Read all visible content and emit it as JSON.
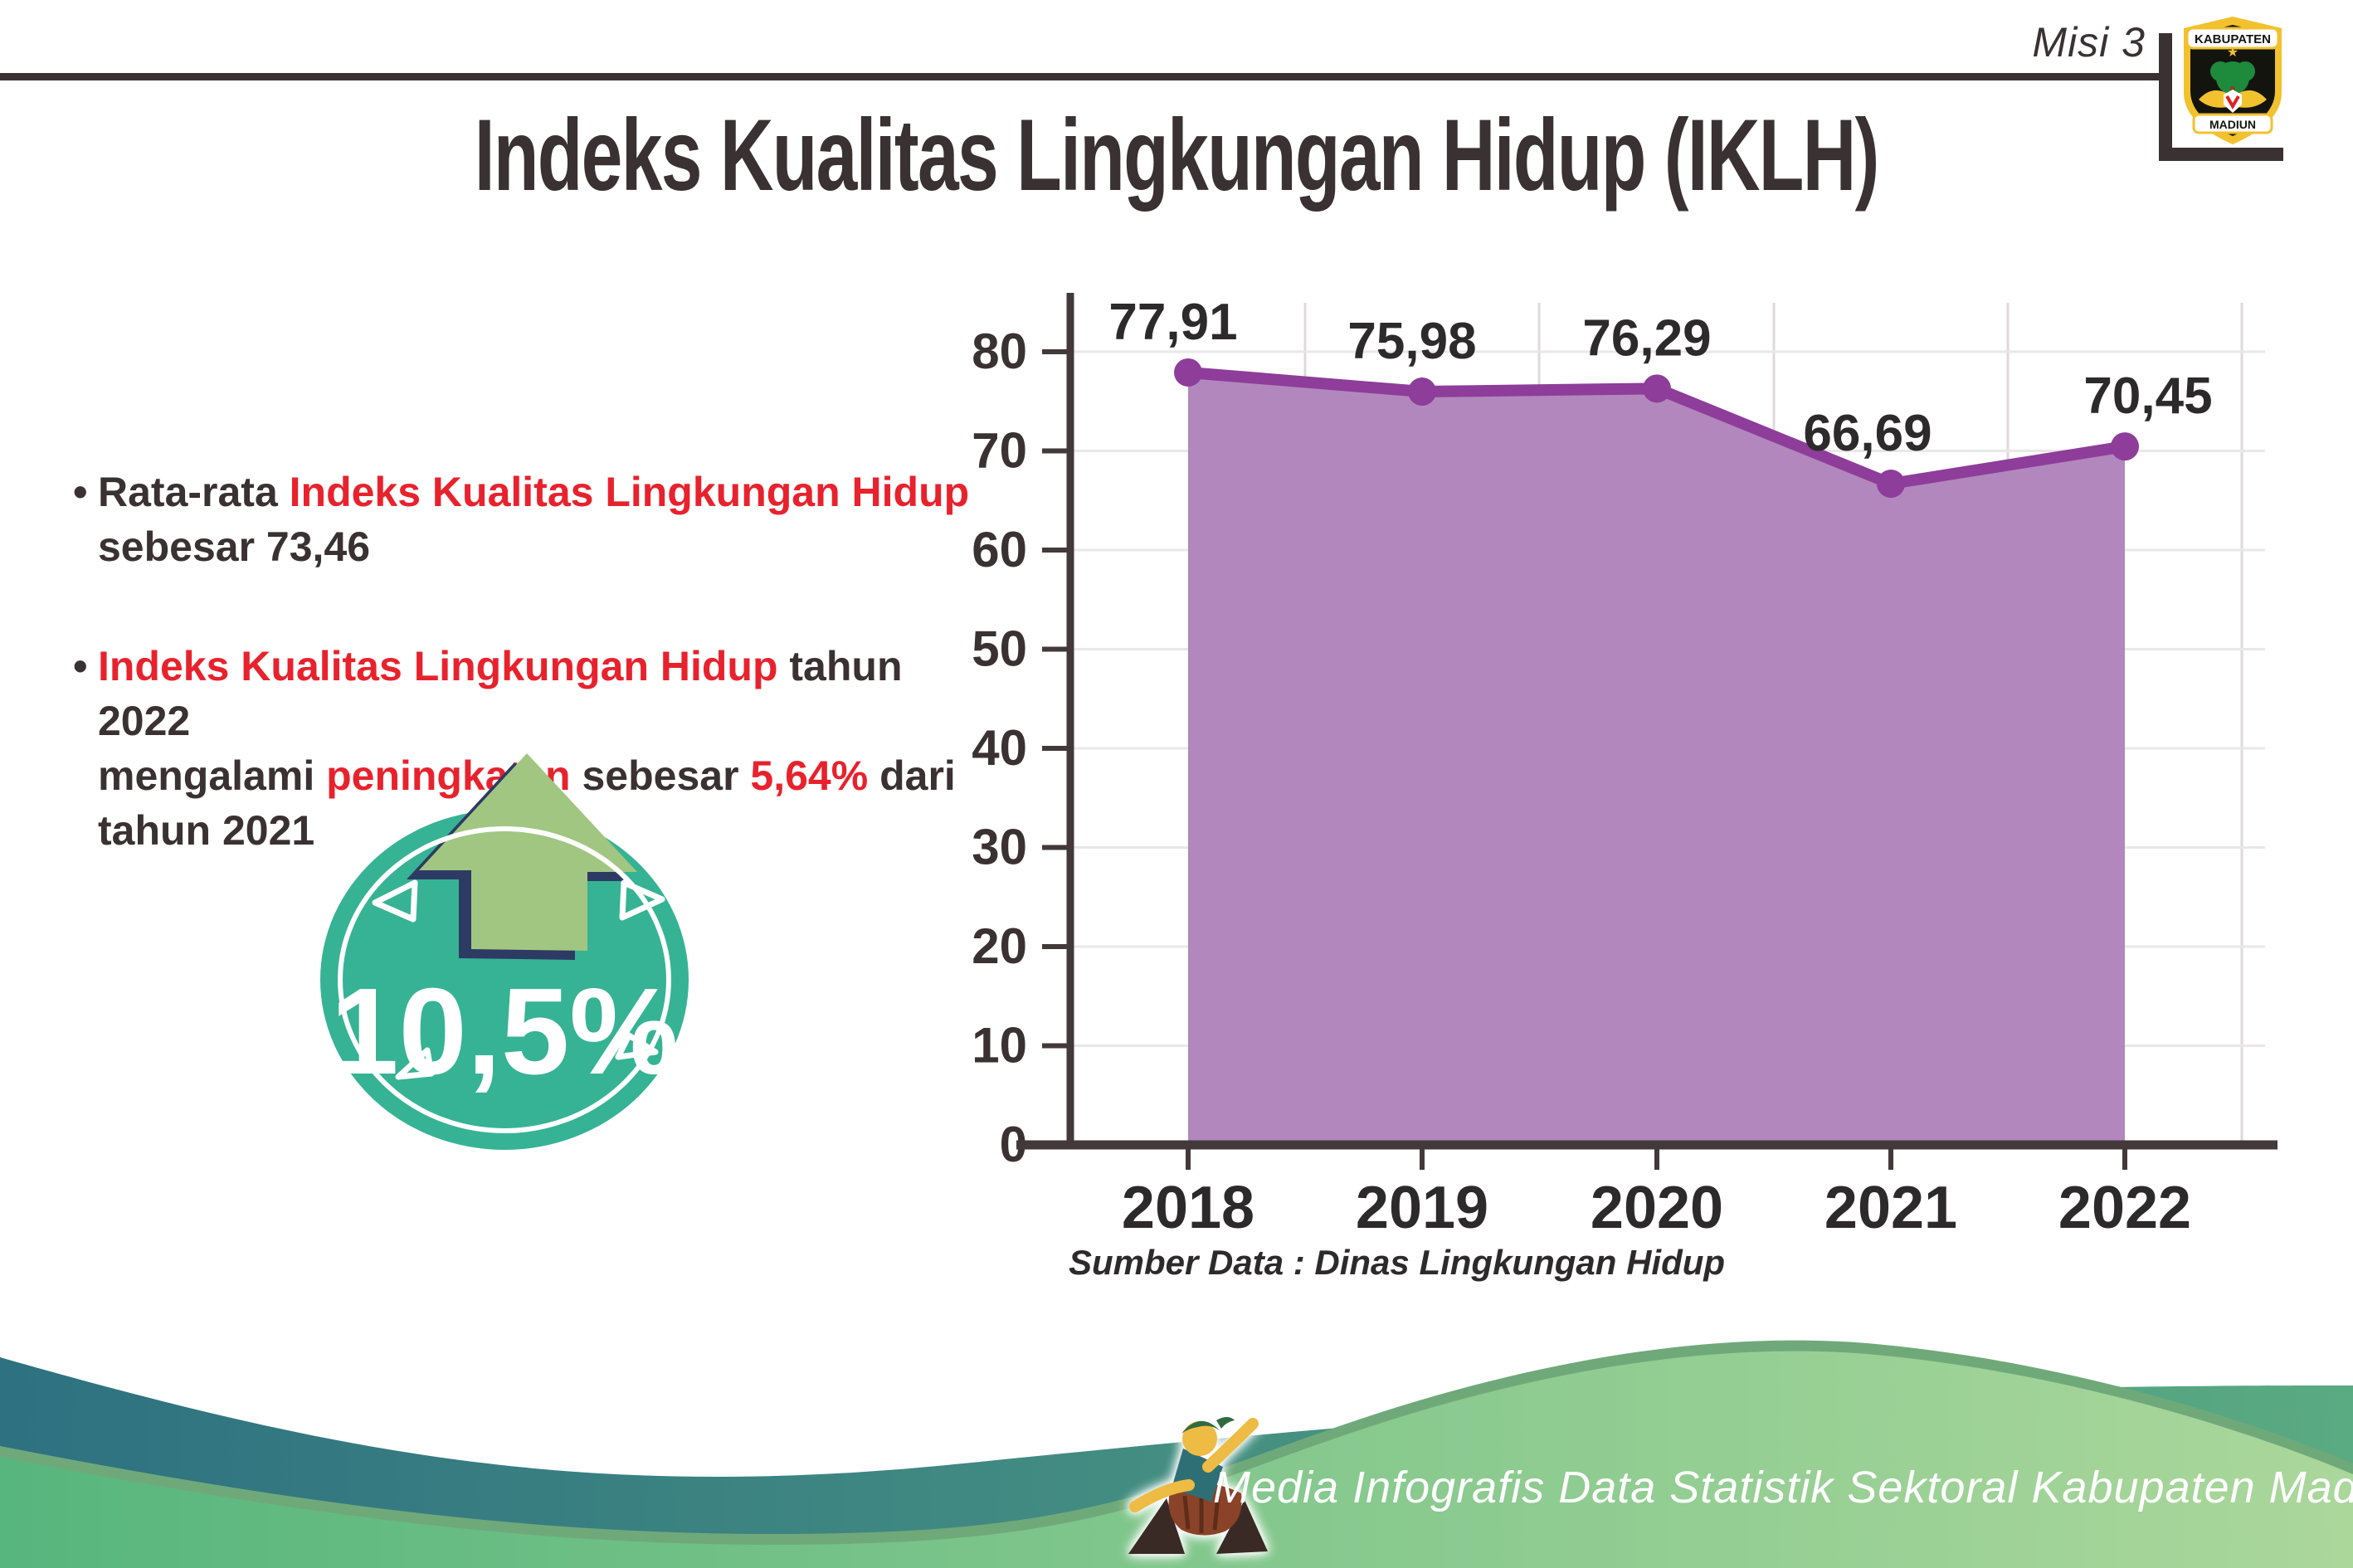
{
  "header": {
    "misi_label": "Misi 3",
    "emblem": {
      "top_banner": "KABUPATEN",
      "bottom_banner": "MADIUN"
    }
  },
  "title": "Indeks Kualitas Lingkungan Hidup (IKLH)",
  "bullets": [
    {
      "segments": [
        {
          "text": "Rata-rata ",
          "color": "dark"
        },
        {
          "text": "Indeks Kualitas Lingkungan Hidup",
          "color": "red"
        },
        {
          "text": "\nsebesar 73,46",
          "color": "dark"
        }
      ]
    },
    {
      "segments": [
        {
          "text": "Indeks Kualitas Lingkungan Hidup",
          "color": "red"
        },
        {
          "text": " tahun 2022\nmengalami ",
          "color": "dark"
        },
        {
          "text": "peningkatan",
          "color": "red"
        },
        {
          "text": " sebesar ",
          "color": "dark"
        },
        {
          "text": "5,64%",
          "color": "red"
        },
        {
          "text": " dari\ntahun 2021",
          "color": "dark"
        }
      ]
    }
  ],
  "badge": {
    "value": "10,5%",
    "icon": "arrow-up-icon"
  },
  "chart_data": {
    "type": "area",
    "categories": [
      "2018",
      "2019",
      "2020",
      "2021",
      "2022"
    ],
    "series": [
      {
        "name": "IKLH",
        "values": [
          77.91,
          75.98,
          76.29,
          66.69,
          70.45
        ]
      }
    ],
    "value_labels": [
      "77,91",
      "75,98",
      "76,29",
      "66,69",
      "70,45"
    ],
    "title": "",
    "xlabel": "",
    "ylabel": "",
    "ylim": [
      0,
      80
    ],
    "ytick_step": 10,
    "yticks": [
      "0",
      "10",
      "20",
      "30",
      "40",
      "50",
      "60",
      "70",
      "80"
    ],
    "grid": true,
    "legend": "none"
  },
  "source_label": "Sumber Data : Dinas Lingkungan Hidup",
  "footer": {
    "credit": "Media Infografis Data Statistik Sektoral Kabupaten Madiun |"
  },
  "colors": {
    "text_dark": "#3a3133",
    "red": "#e8222d",
    "purple_area": "#b287bd",
    "purple_line": "#8e3d9a",
    "grid_h": "#e9e7e7",
    "grid_v": "#dedada",
    "axis": "#43393a",
    "teal_badge": "#36b394",
    "arrow_green": "#a0c681",
    "arrow_outline": "#2d3a64",
    "footer_teal_start": "#2e7181",
    "footer_teal_end": "#5aaa82",
    "footer_green_start": "#57b67d",
    "footer_green_end": "#abd79b",
    "footer_edge": "#6fa97a"
  }
}
